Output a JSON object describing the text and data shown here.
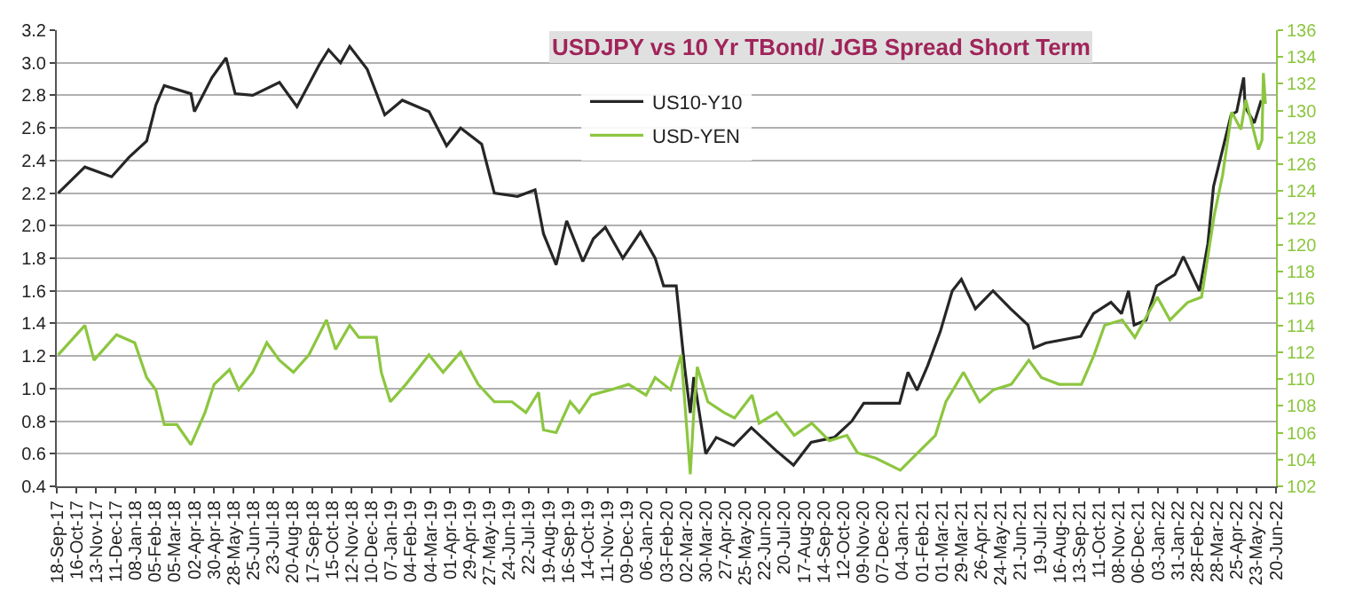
{
  "chart_data": {
    "type": "line",
    "title": "USDJPY vs 10 Yr TBond/ JGB Spread Short Term",
    "xlim": [
      "2017-09-18",
      "2022-06-20"
    ],
    "xticks": [
      {
        "value": "2017-09-18",
        "label": "18-Sep-17"
      },
      {
        "value": "2017-10-16",
        "label": "16-Oct-17"
      },
      {
        "value": "2017-11-13",
        "label": "13-Nov-17"
      },
      {
        "value": "2017-12-11",
        "label": "11-Dec-17"
      },
      {
        "value": "2018-01-08",
        "label": "08-Jan-18"
      },
      {
        "value": "2018-02-05",
        "label": "05-Feb-18"
      },
      {
        "value": "2018-03-05",
        "label": "05-Mar-18"
      },
      {
        "value": "2018-04-02",
        "label": "02-Apr-18"
      },
      {
        "value": "2018-04-30",
        "label": "30-Apr-18"
      },
      {
        "value": "2018-05-28",
        "label": "28-May-18"
      },
      {
        "value": "2018-06-25",
        "label": "25-Jun-18"
      },
      {
        "value": "2018-07-23",
        "label": "23-Jul-18"
      },
      {
        "value": "2018-08-20",
        "label": "20-Aug-18"
      },
      {
        "value": "2018-09-17",
        "label": "17-Sep-18"
      },
      {
        "value": "2018-10-15",
        "label": "15-Oct-18"
      },
      {
        "value": "2018-11-12",
        "label": "12-Nov-18"
      },
      {
        "value": "2018-12-10",
        "label": "10-Dec-18"
      },
      {
        "value": "2019-01-07",
        "label": "07-Jan-19"
      },
      {
        "value": "2019-02-04",
        "label": "04-Feb-19"
      },
      {
        "value": "2019-03-04",
        "label": "04-Mar-19"
      },
      {
        "value": "2019-04-01",
        "label": "01-Apr-19"
      },
      {
        "value": "2019-04-29",
        "label": "29-Apr-19"
      },
      {
        "value": "2019-05-27",
        "label": "27-May-19"
      },
      {
        "value": "2019-06-24",
        "label": "24-Jun-19"
      },
      {
        "value": "2019-07-22",
        "label": "22-Jul-19"
      },
      {
        "value": "2019-08-19",
        "label": "19-Aug-19"
      },
      {
        "value": "2019-09-16",
        "label": "16-Sep-19"
      },
      {
        "value": "2019-10-14",
        "label": "14-Oct-19"
      },
      {
        "value": "2019-11-11",
        "label": "11-Nov-19"
      },
      {
        "value": "2019-12-09",
        "label": "09-Dec-19"
      },
      {
        "value": "2020-01-06",
        "label": "06-Jan-20"
      },
      {
        "value": "2020-02-03",
        "label": "03-Feb-20"
      },
      {
        "value": "2020-03-02",
        "label": "02-Mar-20"
      },
      {
        "value": "2020-03-30",
        "label": "30-Mar-20"
      },
      {
        "value": "2020-04-27",
        "label": "27-Apr-20"
      },
      {
        "value": "2020-05-25",
        "label": "25-May-20"
      },
      {
        "value": "2020-06-22",
        "label": "22-Jun-20"
      },
      {
        "value": "2020-07-20",
        "label": "20-Jul-20"
      },
      {
        "value": "2020-08-17",
        "label": "17-Aug-20"
      },
      {
        "value": "2020-09-14",
        "label": "14-Sep-20"
      },
      {
        "value": "2020-10-12",
        "label": "12-Oct-20"
      },
      {
        "value": "2020-11-09",
        "label": "09-Nov-20"
      },
      {
        "value": "2020-12-07",
        "label": "07-Dec-20"
      },
      {
        "value": "2021-01-04",
        "label": "04-Jan-21"
      },
      {
        "value": "2021-02-01",
        "label": "01-Feb-21"
      },
      {
        "value": "2021-03-01",
        "label": "01-Mar-21"
      },
      {
        "value": "2021-03-29",
        "label": "29-Mar-21"
      },
      {
        "value": "2021-04-26",
        "label": "26-Apr-21"
      },
      {
        "value": "2021-05-24",
        "label": "24-May-21"
      },
      {
        "value": "2021-06-21",
        "label": "21-Jun-21"
      },
      {
        "value": "2021-07-19",
        "label": "19-Jul-21"
      },
      {
        "value": "2021-08-16",
        "label": "16-Aug-21"
      },
      {
        "value": "2021-09-13",
        "label": "13-Sep-21"
      },
      {
        "value": "2021-10-11",
        "label": "11-Oct-21"
      },
      {
        "value": "2021-11-08",
        "label": "08-Nov-21"
      },
      {
        "value": "2021-12-06",
        "label": "06-Dec-21"
      },
      {
        "value": "2022-01-03",
        "label": "03-Jan-22"
      },
      {
        "value": "2022-01-31",
        "label": "31-Jan-22"
      },
      {
        "value": "2022-02-28",
        "label": "28-Feb-22"
      },
      {
        "value": "2022-03-28",
        "label": "28-Mar-22"
      },
      {
        "value": "2022-04-25",
        "label": "25-Apr-22"
      },
      {
        "value": "2022-05-23",
        "label": "23-May-22"
      },
      {
        "value": "2022-06-20",
        "label": "20-Jun-22"
      }
    ],
    "ylim": [
      0.4,
      3.2
    ],
    "yticks": [
      0.4,
      0.6,
      0.8,
      {
        "value": 1,
        "label": "1.0"
      },
      1.2,
      1.4,
      1.6,
      1.8,
      {
        "value": 2,
        "label": "2.0"
      },
      2.2,
      2.4,
      2.6,
      2.8,
      {
        "value": 3,
        "label": "3.0"
      },
      3.2
    ],
    "y2lim": [
      102,
      136
    ],
    "y2ticks": [
      102,
      104,
      106,
      108,
      110,
      112,
      114,
      116,
      118,
      120,
      122,
      124,
      126,
      128,
      130,
      132,
      134,
      136
    ],
    "grid": "y",
    "legend": "top",
    "marker": "none",
    "line_style": "solid",
    "series": [
      {
        "name": "US10-Y10",
        "color": "#262626",
        "x": [
          "2017-09-20",
          "2017-10-28",
          "2017-12-05",
          "2017-12-30",
          "2018-01-24",
          "2018-02-06",
          "2018-02-18",
          "2018-03-28",
          "2018-04-02",
          "2018-04-27",
          "2018-05-17",
          "2018-05-30",
          "2018-06-24",
          "2018-08-01",
          "2018-08-26",
          "2018-09-27",
          "2018-10-10",
          "2018-10-27",
          "2018-11-09",
          "2018-12-04",
          "2018-12-29",
          "2019-01-23",
          "2019-03-02",
          "2019-03-27",
          "2019-04-16",
          "2019-05-16",
          "2019-06-03",
          "2019-07-06",
          "2019-07-31",
          "2019-08-12",
          "2019-08-30",
          "2019-09-14",
          "2019-10-07",
          "2019-10-22",
          "2019-11-08",
          "2019-12-03",
          "2019-12-28",
          "2020-01-18",
          "2020-01-30",
          "2020-02-17",
          "2020-02-29",
          "2020-03-08",
          "2020-03-13",
          "2020-03-30",
          "2020-04-14",
          "2020-05-09",
          "2020-06-03",
          "2020-07-08",
          "2020-08-02",
          "2020-08-27",
          "2020-09-29",
          "2020-10-24",
          "2020-11-10",
          "2020-12-06",
          "2020-12-31",
          "2021-01-12",
          "2021-01-25",
          "2021-02-09",
          "2021-02-27",
          "2021-03-16",
          "2021-03-29",
          "2021-04-18",
          "2021-05-13",
          "2021-06-07",
          "2021-07-02",
          "2021-07-10",
          "2021-07-27",
          "2021-09-15",
          "2021-10-03",
          "2021-10-28",
          "2021-11-12",
          "2021-11-22",
          "2021-11-30",
          "2021-12-17",
          "2022-01-01",
          "2022-01-27",
          "2022-02-08",
          "2022-03-03",
          "2022-03-15",
          "2022-03-23",
          "2022-04-04",
          "2022-04-17",
          "2022-04-25",
          "2022-05-05",
          "2022-05-07",
          "2022-05-20",
          "2022-05-30"
        ],
        "values": [
          2.2,
          2.36,
          2.3,
          2.42,
          2.52,
          2.74,
          2.86,
          2.81,
          2.7,
          2.91,
          3.03,
          2.81,
          2.8,
          2.88,
          2.73,
          2.99,
          3.08,
          3.0,
          3.1,
          2.96,
          2.68,
          2.77,
          2.7,
          2.49,
          2.6,
          2.5,
          2.2,
          2.18,
          2.22,
          1.95,
          1.76,
          2.03,
          1.78,
          1.92,
          1.99,
          1.8,
          1.96,
          1.8,
          1.63,
          1.63,
          1.13,
          0.85,
          1.07,
          0.6,
          0.7,
          0.65,
          0.76,
          0.62,
          0.53,
          0.67,
          0.7,
          0.8,
          0.91,
          0.91,
          0.91,
          1.1,
          0.99,
          1.14,
          1.35,
          1.6,
          1.67,
          1.49,
          1.6,
          1.49,
          1.39,
          1.25,
          1.28,
          1.32,
          1.46,
          1.53,
          1.46,
          1.6,
          1.39,
          1.42,
          1.63,
          1.7,
          1.81,
          1.6,
          1.89,
          2.24,
          2.45,
          2.68,
          2.7,
          2.91,
          2.73,
          2.63,
          2.77
        ]
      },
      {
        "name": "USD-YEN",
        "color": "#8cc63f",
        "axis": "y2",
        "x": [
          "2017-09-20",
          "2017-10-28",
          "2017-11-10",
          "2017-12-12",
          "2018-01-07",
          "2018-01-24",
          "2018-02-06",
          "2018-02-18",
          "2018-03-08",
          "2018-03-28",
          "2018-04-17",
          "2018-04-30",
          "2018-05-22",
          "2018-06-04",
          "2018-06-24",
          "2018-07-14",
          "2018-08-01",
          "2018-08-21",
          "2018-09-12",
          "2018-10-07",
          "2018-10-20",
          "2018-11-09",
          "2018-11-22",
          "2018-12-17",
          "2018-12-24",
          "2019-01-06",
          "2019-01-28",
          "2019-03-02",
          "2019-03-22",
          "2019-04-16",
          "2019-05-11",
          "2019-06-03",
          "2019-06-28",
          "2019-07-18",
          "2019-08-05",
          "2019-08-12",
          "2019-08-30",
          "2019-09-19",
          "2019-10-02",
          "2019-10-19",
          "2019-11-16",
          "2019-12-11",
          "2020-01-05",
          "2020-01-18",
          "2020-02-09",
          "2020-02-24",
          "2020-03-08",
          "2020-03-13",
          "2020-03-18",
          "2020-04-02",
          "2020-04-25",
          "2020-05-10",
          "2020-06-04",
          "2020-06-14",
          "2020-07-09",
          "2020-08-03",
          "2020-08-28",
          "2020-09-22",
          "2020-10-17",
          "2020-11-01",
          "2020-11-27",
          "2021-01-01",
          "2021-01-26",
          "2021-02-20",
          "2021-03-07",
          "2021-04-01",
          "2021-04-24",
          "2021-05-14",
          "2021-06-08",
          "2021-07-03",
          "2021-07-21",
          "2021-08-15",
          "2021-09-16",
          "2021-10-04",
          "2021-10-19",
          "2021-11-13",
          "2021-12-01",
          "2022-01-02",
          "2022-01-20",
          "2022-02-14",
          "2022-03-06",
          "2022-03-24",
          "2022-04-05",
          "2022-04-18",
          "2022-05-01",
          "2022-05-08",
          "2022-05-26",
          "2022-05-31",
          "2022-06-02",
          "2022-06-05"
        ],
        "values": [
          111.8,
          114.0,
          111.4,
          113.3,
          112.7,
          110.1,
          109.2,
          106.6,
          106.6,
          105.1,
          107.5,
          109.6,
          110.7,
          109.2,
          110.5,
          112.7,
          111.4,
          110.5,
          111.8,
          114.4,
          112.2,
          114.0,
          113.1,
          113.1,
          110.5,
          108.3,
          109.6,
          111.8,
          110.5,
          112.0,
          109.6,
          108.3,
          108.3,
          107.5,
          109.0,
          106.2,
          106.0,
          108.3,
          107.5,
          108.8,
          109.2,
          109.6,
          108.8,
          110.1,
          109.2,
          111.8,
          102.9,
          107.5,
          110.9,
          108.3,
          107.5,
          107.1,
          108.8,
          106.7,
          107.5,
          105.8,
          106.7,
          105.4,
          105.8,
          104.5,
          104.1,
          103.2,
          104.5,
          105.8,
          108.3,
          110.5,
          108.3,
          109.2,
          109.6,
          111.4,
          110.1,
          109.6,
          109.6,
          111.8,
          114.0,
          114.4,
          113.1,
          116.1,
          114.4,
          115.7,
          116.1,
          122.2,
          125.2,
          129.9,
          128.6,
          130.8,
          127.1,
          127.8,
          132.8,
          130.5
        ]
      }
    ]
  }
}
